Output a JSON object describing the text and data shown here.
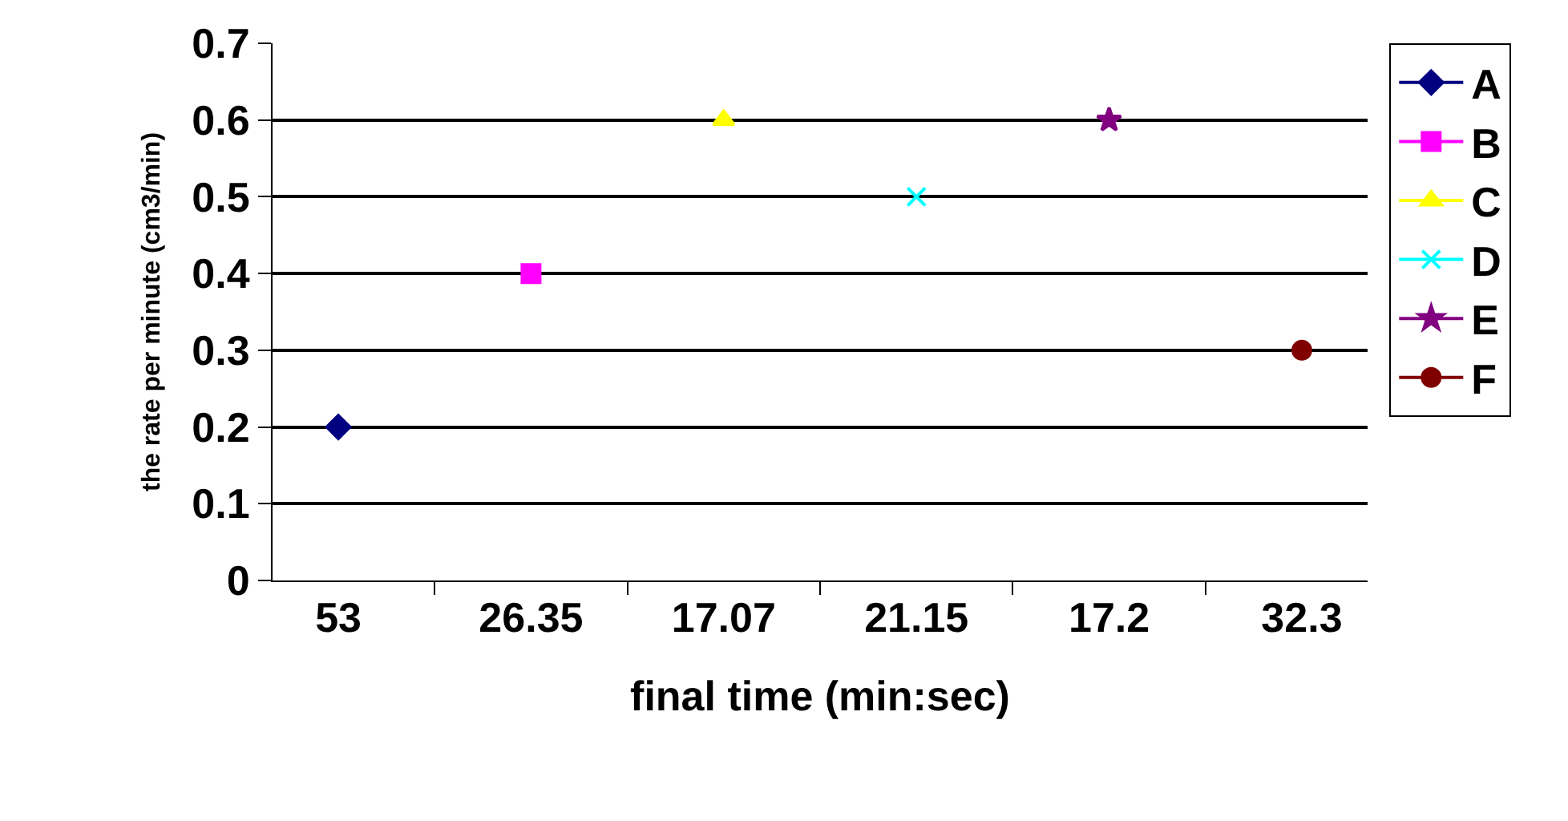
{
  "chart_data": {
    "type": "scatter",
    "xlabel": "final time (min:sec)",
    "ylabel": "the rate per minute (cm3/min)",
    "categories": [
      "53",
      "26.35",
      "17.07",
      "21.15",
      "17.2",
      "32.3"
    ],
    "series": [
      {
        "name": "A",
        "color": "#000080",
        "marker": "diamond",
        "values": [
          0.2,
          null,
          null,
          null,
          null,
          null
        ]
      },
      {
        "name": "B",
        "color": "#ff00ff",
        "marker": "square",
        "values": [
          null,
          0.4,
          null,
          null,
          null,
          null
        ]
      },
      {
        "name": "C",
        "color": "#ffff00",
        "marker": "triangle",
        "values": [
          null,
          null,
          0.6,
          null,
          null,
          null
        ]
      },
      {
        "name": "D",
        "color": "#00ffff",
        "marker": "cross",
        "values": [
          null,
          null,
          null,
          0.5,
          null,
          null
        ]
      },
      {
        "name": "E",
        "color": "#800080",
        "marker": "star",
        "values": [
          null,
          null,
          null,
          null,
          0.6,
          null
        ]
      },
      {
        "name": "F",
        "color": "#800000",
        "marker": "circle",
        "values": [
          null,
          null,
          null,
          null,
          null,
          0.3
        ]
      }
    ],
    "ylim": [
      0,
      0.7
    ],
    "yticks": [
      0,
      0.1,
      0.2,
      0.3,
      0.4,
      0.5,
      0.6,
      0.7
    ],
    "grid": "y",
    "legend": "right",
    "line_style": "solid"
  }
}
